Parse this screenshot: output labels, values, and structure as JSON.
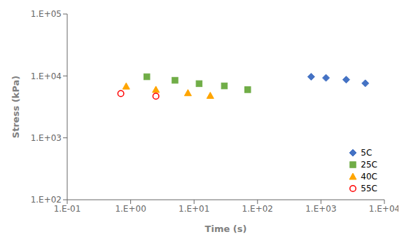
{
  "chart_data": {
    "type": "scatter",
    "xlabel": "Time (s)",
    "ylabel": "Stress (kPa)",
    "log": true,
    "grid": false,
    "legend": "lower right",
    "xlim": [
      0.1,
      10000
    ],
    "ylim": [
      100,
      100000
    ],
    "xticks": [
      {
        "value": 0.1,
        "label": "1.E-01"
      },
      {
        "value": 1,
        "label": "1.E+00"
      },
      {
        "value": 10,
        "label": "1.E+01"
      },
      {
        "value": 100,
        "label": "1.E+02"
      },
      {
        "value": 1000,
        "label": "1.E+03"
      },
      {
        "value": 10000,
        "label": "1.E+04"
      }
    ],
    "yticks": [
      {
        "value": 100,
        "label": "1.E+02"
      },
      {
        "value": 1000,
        "label": "1.E+03"
      },
      {
        "value": 10000,
        "label": "1.E+04"
      },
      {
        "value": 100000,
        "label": "1.E+05"
      }
    ],
    "series": [
      {
        "name": "5C",
        "color": "#4472C4",
        "marker": "diamond",
        "x": [
          700,
          1200,
          2500,
          5000
        ],
        "values": [
          9700,
          9300,
          8700,
          7600
        ]
      },
      {
        "name": "25C",
        "color": "#70AD47",
        "marker": "square",
        "x": [
          1.8,
          5,
          12,
          30,
          70
        ],
        "values": [
          9700,
          8500,
          7500,
          6900,
          6000
        ]
      },
      {
        "name": "40C",
        "color": "#FFA500",
        "marker": "triangle",
        "x": [
          0.85,
          2.5,
          8,
          18
        ],
        "values": [
          6800,
          6000,
          5300,
          4800
        ]
      },
      {
        "name": "55C",
        "color": "#FF0000",
        "marker": "open_circle",
        "x": [
          0.7,
          2.5
        ],
        "values": [
          5200,
          4700
        ]
      }
    ]
  }
}
